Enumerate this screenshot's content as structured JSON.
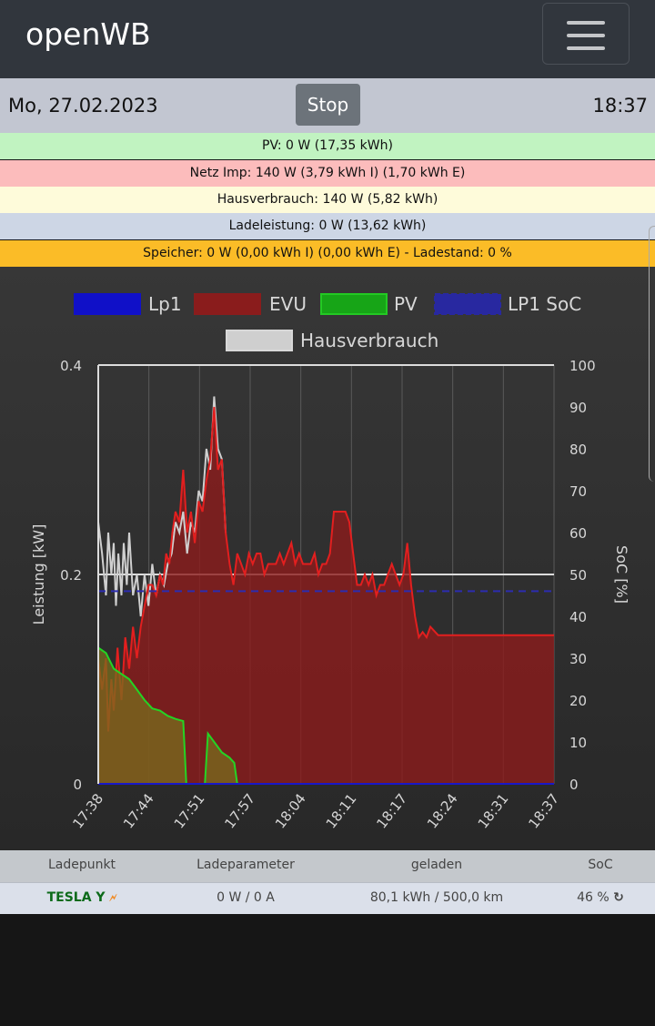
{
  "app": {
    "title": "openWB"
  },
  "info": {
    "date": "Mo, 27.02.2023",
    "time": "18:37",
    "stop_label": "Stop"
  },
  "status": [
    {
      "text": "PV: 0 W (17,35 kWh)",
      "color": "#c1f3c1"
    },
    {
      "text": "Netz Imp: 140 W (3,79 kWh I) (1,70 kWh E)",
      "color": "#fcbcbc"
    },
    {
      "text": "Hausverbrauch: 140 W (5,82 kWh)",
      "color": "#fefbda"
    },
    {
      "text": "Ladeleistung: 0 W (13,62 kWh)",
      "color": "#cdd6e5"
    },
    {
      "text": "Speicher: 0 W (0,00 kWh I) (0,00 kWh E) - Ladestand: 0 %",
      "color": "#fbbc27"
    }
  ],
  "chart_data": {
    "type": "area",
    "legend": [
      {
        "name": "Lp1",
        "color": "#1010c8"
      },
      {
        "name": "EVU",
        "color": "#8a1c1c"
      },
      {
        "name": "PV",
        "color": "#17a517"
      },
      {
        "name": "LP1 SoC",
        "color": "#2828a0"
      },
      {
        "name": "Hausverbrauch",
        "color": "#cfcfcf"
      }
    ],
    "ylabel_left": "Leistung [kW]",
    "ylabel_right": "SoC [%]",
    "y_left_ticks": [
      "0",
      "0.2",
      "0.4"
    ],
    "y_right_ticks": [
      "0",
      "10",
      "20",
      "30",
      "40",
      "50",
      "60",
      "70",
      "80",
      "90",
      "100"
    ],
    "x_ticks": [
      "17:38",
      "17:44",
      "17:51",
      "17:57",
      "18:04",
      "18:11",
      "18:17",
      "18:24",
      "18:31",
      "18:37"
    ],
    "ylim_left": [
      0,
      0.4
    ],
    "ylim_right": [
      0,
      100
    ],
    "soc_value": 46,
    "series": {
      "EVU": [
        [
          0,
          0.12
        ],
        [
          0.5,
          0.09
        ],
        [
          1,
          0.12
        ],
        [
          1.3,
          0.05
        ],
        [
          1.7,
          0.1
        ],
        [
          2,
          0.07
        ],
        [
          2.5,
          0.13
        ],
        [
          3,
          0.08
        ],
        [
          3.5,
          0.14
        ],
        [
          4,
          0.11
        ],
        [
          4.5,
          0.15
        ],
        [
          5,
          0.12
        ],
        [
          5.5,
          0.15
        ],
        [
          6,
          0.17
        ],
        [
          6.5,
          0.19
        ],
        [
          7,
          0.19
        ],
        [
          7.5,
          0.18
        ],
        [
          8,
          0.2
        ],
        [
          8.4,
          0.19
        ],
        [
          8.8,
          0.22
        ],
        [
          9.2,
          0.21
        ],
        [
          9.6,
          0.24
        ],
        [
          10,
          0.26
        ],
        [
          10.5,
          0.25
        ],
        [
          11,
          0.3
        ],
        [
          11.5,
          0.24
        ],
        [
          12,
          0.26
        ],
        [
          12.5,
          0.23
        ],
        [
          13,
          0.27
        ],
        [
          13.5,
          0.26
        ],
        [
          14,
          0.29
        ],
        [
          14.5,
          0.31
        ],
        [
          15,
          0.36
        ],
        [
          15.5,
          0.3
        ],
        [
          16,
          0.31
        ],
        [
          16.5,
          0.24
        ],
        [
          17,
          0.21
        ],
        [
          17.5,
          0.19
        ],
        [
          18,
          0.22
        ],
        [
          18.5,
          0.21
        ],
        [
          19,
          0.2
        ],
        [
          19.5,
          0.22
        ],
        [
          20,
          0.21
        ],
        [
          20.5,
          0.22
        ],
        [
          21,
          0.22
        ],
        [
          21.5,
          0.2
        ],
        [
          22,
          0.21
        ],
        [
          22.5,
          0.21
        ],
        [
          23,
          0.21
        ],
        [
          23.5,
          0.22
        ],
        [
          24,
          0.21
        ],
        [
          24.5,
          0.22
        ],
        [
          25,
          0.23
        ],
        [
          25.5,
          0.21
        ],
        [
          26,
          0.22
        ],
        [
          26.5,
          0.21
        ],
        [
          27,
          0.21
        ],
        [
          27.5,
          0.21
        ],
        [
          28,
          0.22
        ],
        [
          28.5,
          0.2
        ],
        [
          29,
          0.21
        ],
        [
          29.5,
          0.21
        ],
        [
          30,
          0.22
        ],
        [
          30.5,
          0.26
        ],
        [
          31,
          0.26
        ],
        [
          31.5,
          0.26
        ],
        [
          32,
          0.26
        ],
        [
          32.5,
          0.25
        ],
        [
          33,
          0.22
        ],
        [
          33.5,
          0.19
        ],
        [
          34,
          0.19
        ],
        [
          34.5,
          0.2
        ],
        [
          35,
          0.19
        ],
        [
          35.5,
          0.2
        ],
        [
          36,
          0.18
        ],
        [
          36.5,
          0.19
        ],
        [
          37,
          0.19
        ],
        [
          37.5,
          0.2
        ],
        [
          38,
          0.21
        ],
        [
          38.5,
          0.2
        ],
        [
          39,
          0.19
        ],
        [
          39.5,
          0.2
        ],
        [
          40,
          0.23
        ],
        [
          40.5,
          0.19
        ],
        [
          41,
          0.16
        ],
        [
          41.5,
          0.14
        ],
        [
          42,
          0.145
        ],
        [
          42.5,
          0.14
        ],
        [
          43,
          0.15
        ],
        [
          44,
          0.142
        ],
        [
          59,
          0.142
        ]
      ],
      "Hausverbrauch": [
        [
          0,
          0.25
        ],
        [
          0.5,
          0.22
        ],
        [
          1,
          0.18
        ],
        [
          1.3,
          0.24
        ],
        [
          1.7,
          0.2
        ],
        [
          2,
          0.23
        ],
        [
          2.3,
          0.17
        ],
        [
          2.6,
          0.22
        ],
        [
          3,
          0.18
        ],
        [
          3.3,
          0.23
        ],
        [
          3.7,
          0.19
        ],
        [
          4,
          0.24
        ],
        [
          4.5,
          0.18
        ],
        [
          5,
          0.2
        ],
        [
          5.5,
          0.16
        ],
        [
          6,
          0.2
        ],
        [
          6.5,
          0.17
        ],
        [
          7,
          0.21
        ],
        [
          7.5,
          0.18
        ],
        [
          8,
          0.2
        ],
        [
          8.5,
          0.19
        ],
        [
          9,
          0.21
        ],
        [
          9.5,
          0.22
        ],
        [
          10,
          0.25
        ],
        [
          10.5,
          0.24
        ],
        [
          11,
          0.26
        ],
        [
          11.5,
          0.22
        ],
        [
          12,
          0.25
        ],
        [
          12.5,
          0.24
        ],
        [
          13,
          0.28
        ],
        [
          13.5,
          0.27
        ],
        [
          14,
          0.32
        ],
        [
          14.5,
          0.3
        ],
        [
          15,
          0.37
        ],
        [
          15.5,
          0.32
        ],
        [
          16,
          0.31
        ],
        [
          16.5,
          0.24
        ]
      ],
      "PV": [
        [
          0,
          0.13
        ],
        [
          1,
          0.125
        ],
        [
          2,
          0.11
        ],
        [
          3,
          0.105
        ],
        [
          4,
          0.1
        ],
        [
          5,
          0.09
        ],
        [
          6,
          0.08
        ],
        [
          7,
          0.072
        ],
        [
          8,
          0.07
        ],
        [
          9,
          0.065
        ],
        [
          10,
          0.062
        ],
        [
          11,
          0.06
        ],
        [
          11.4,
          0.0
        ],
        [
          13.8,
          0.0
        ],
        [
          14.2,
          0.048
        ],
        [
          15,
          0.04
        ],
        [
          16,
          0.03
        ],
        [
          17,
          0.025
        ],
        [
          17.6,
          0.02
        ],
        [
          18,
          0.0
        ],
        [
          59,
          0.0
        ]
      ],
      "Lp1": [
        [
          0,
          0
        ],
        [
          59,
          0
        ]
      ]
    },
    "x_max": 59
  },
  "table": {
    "headers": [
      "Ladepunkt",
      "Ladeparameter",
      "geladen",
      "SoC"
    ],
    "rows": [
      {
        "name": "TESLA Y",
        "param": "0 W / 0 A",
        "charged": "80,1 kWh / 500,0 km",
        "soc": "46 %"
      }
    ]
  }
}
